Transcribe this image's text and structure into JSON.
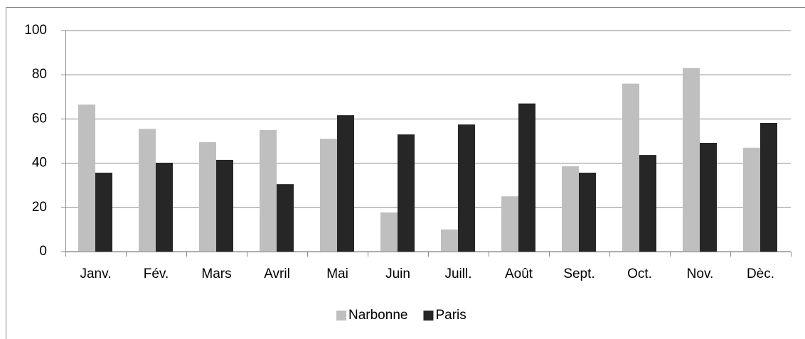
{
  "chart_data": {
    "type": "bar",
    "categories": [
      "Janv.",
      "Fév.",
      "Mars",
      "Avril",
      "Mai",
      "Juin",
      "Juill.",
      "Août",
      "Sept.",
      "Oct.",
      "Nov.",
      "Dèc."
    ],
    "series": [
      {
        "name": "Narbonne",
        "color": "#bfbfbf",
        "values": [
          66.5,
          55.5,
          49.5,
          55,
          51,
          17.7,
          10,
          25,
          38.6,
          76,
          83,
          47
        ]
      },
      {
        "name": "Paris",
        "color": "#262626",
        "values": [
          35.7,
          40.2,
          41.5,
          30.5,
          61.7,
          53,
          57.5,
          67,
          35.7,
          43.7,
          49.2,
          58.2
        ]
      }
    ],
    "ylim": [
      0,
      100
    ],
    "yticks": [
      0,
      20,
      40,
      60,
      80,
      100
    ],
    "grid": true,
    "legend": "bottom"
  }
}
